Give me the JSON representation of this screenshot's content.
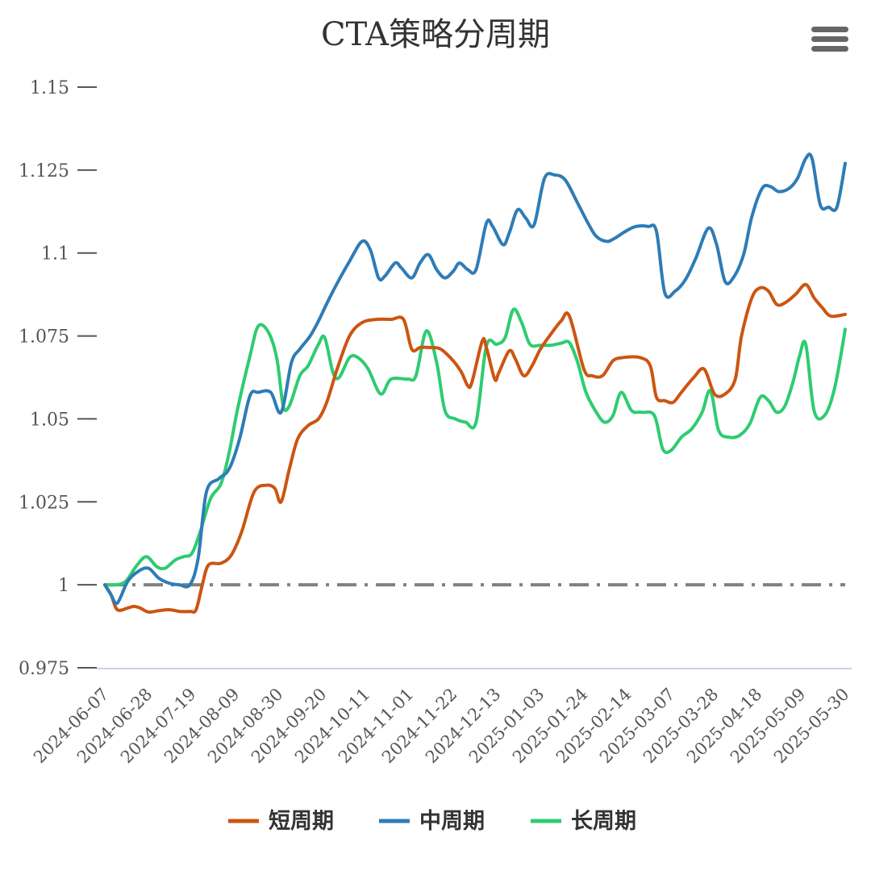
{
  "menu": {
    "icon": "hamburger-menu-icon"
  },
  "chart_data": {
    "type": "line",
    "title": "CTA策略分周期",
    "xlabel": "",
    "ylabel": "",
    "ylim": [
      0.975,
      1.15
    ],
    "yticks": [
      "1.15",
      "1.125",
      "1.1",
      "1.075",
      "1.05",
      "1.025",
      "1",
      "0.975"
    ],
    "ytick_values": [
      1.15,
      1.125,
      1.1,
      1.075,
      1.05,
      1.025,
      1.0,
      0.975
    ],
    "xticks": [
      "2024-06-07",
      "2024-06-28",
      "2024-07-19",
      "2024-08-09",
      "2024-08-30",
      "2024-09-20",
      "2024-10-11",
      "2024-11-01",
      "2024-11-22",
      "2024-12-13",
      "2025-01-03",
      "2025-01-24",
      "2025-02-14",
      "2025-03-07",
      "2025-03-28",
      "2025-04-18",
      "2025-05-09",
      "2025-05-30"
    ],
    "x_start": "2024-06-07",
    "x_end": "2025-05-30",
    "grid": false,
    "legend_position": "bottom",
    "reference_line": {
      "y": 1.0,
      "style": "dash-dot",
      "color": "#808080"
    },
    "series": [
      {
        "name": "短周期",
        "color": "#CC5511",
        "points": [
          [
            "2024-06-07",
            1.0
          ],
          [
            "2024-06-10",
            0.997
          ],
          [
            "2024-06-13",
            0.9925
          ],
          [
            "2024-06-18",
            0.993
          ],
          [
            "2024-06-21",
            0.9935
          ],
          [
            "2024-06-24",
            0.993
          ],
          [
            "2024-06-28",
            0.9918
          ],
          [
            "2024-07-03",
            0.9922
          ],
          [
            "2024-07-08",
            0.9925
          ],
          [
            "2024-07-13",
            0.992
          ],
          [
            "2024-07-18",
            0.992
          ],
          [
            "2024-07-21",
            0.9925
          ],
          [
            "2024-07-24",
            1.0
          ],
          [
            "2024-07-27",
            1.006
          ],
          [
            "2024-08-02",
            1.0065
          ],
          [
            "2024-08-07",
            1.009
          ],
          [
            "2024-08-12",
            1.016
          ],
          [
            "2024-08-18",
            1.028
          ],
          [
            "2024-08-24",
            1.03
          ],
          [
            "2024-08-28",
            1.029
          ],
          [
            "2024-08-31",
            1.025
          ],
          [
            "2024-09-04",
            1.035
          ],
          [
            "2024-09-08",
            1.044
          ],
          [
            "2024-09-13",
            1.048
          ],
          [
            "2024-09-18",
            1.05
          ],
          [
            "2024-09-22",
            1.055
          ],
          [
            "2024-09-27",
            1.065
          ],
          [
            "2024-10-03",
            1.075
          ],
          [
            "2024-10-09",
            1.079
          ],
          [
            "2024-10-16",
            1.08
          ],
          [
            "2024-10-23",
            1.08
          ],
          [
            "2024-10-29",
            1.08
          ],
          [
            "2024-11-02",
            1.071
          ],
          [
            "2024-11-06",
            1.0715
          ],
          [
            "2024-11-11",
            1.0715
          ],
          [
            "2024-11-16",
            1.071
          ],
          [
            "2024-11-22",
            1.0675
          ],
          [
            "2024-11-26",
            1.064
          ],
          [
            "2024-11-29",
            1.06
          ],
          [
            "2024-12-01",
            1.061
          ],
          [
            "2024-12-06",
            1.0735
          ],
          [
            "2024-12-08",
            1.0715
          ],
          [
            "2024-12-12",
            1.062
          ],
          [
            "2024-12-14",
            1.064
          ],
          [
            "2024-12-19",
            1.0705
          ],
          [
            "2024-12-22",
            1.068
          ],
          [
            "2024-12-26",
            1.063
          ],
          [
            "2024-12-30",
            1.066
          ],
          [
            "2025-01-03",
            1.071
          ],
          [
            "2025-01-08",
            1.0755
          ],
          [
            "2025-01-13",
            1.0795
          ],
          [
            "2025-01-17",
            1.081
          ],
          [
            "2025-01-24",
            1.065
          ],
          [
            "2025-01-28",
            1.063
          ],
          [
            "2025-02-02",
            1.063
          ],
          [
            "2025-02-07",
            1.0675
          ],
          [
            "2025-02-12",
            1.0685
          ],
          [
            "2025-02-20",
            1.0685
          ],
          [
            "2025-02-25",
            1.066
          ],
          [
            "2025-02-28",
            1.0565
          ],
          [
            "2025-03-04",
            1.0555
          ],
          [
            "2025-03-08",
            1.055
          ],
          [
            "2025-03-12",
            1.058
          ],
          [
            "2025-03-18",
            1.0625
          ],
          [
            "2025-03-23",
            1.065
          ],
          [
            "2025-03-28",
            1.0575
          ],
          [
            "2025-04-02",
            1.0575
          ],
          [
            "2025-04-07",
            1.062
          ],
          [
            "2025-04-10",
            1.075
          ],
          [
            "2025-04-15",
            1.0865
          ],
          [
            "2025-04-19",
            1.0895
          ],
          [
            "2025-04-23",
            1.0885
          ],
          [
            "2025-04-27",
            1.0845
          ],
          [
            "2025-05-01",
            1.085
          ],
          [
            "2025-05-06",
            1.0875
          ],
          [
            "2025-05-11",
            1.0905
          ],
          [
            "2025-05-15",
            1.0865
          ],
          [
            "2025-05-19",
            1.0835
          ],
          [
            "2025-05-23",
            1.081
          ],
          [
            "2025-05-30",
            1.0815
          ]
        ]
      },
      {
        "name": "中周期",
        "color": "#2E7CB6",
        "points": [
          [
            "2024-06-07",
            1.0
          ],
          [
            "2024-06-10",
            0.997
          ],
          [
            "2024-06-13",
            0.9945
          ],
          [
            "2024-06-18",
            1.001
          ],
          [
            "2024-06-23",
            1.004
          ],
          [
            "2024-06-28",
            1.005
          ],
          [
            "2024-07-03",
            1.002
          ],
          [
            "2024-07-08",
            1.0005
          ],
          [
            "2024-07-13",
            1.0
          ],
          [
            "2024-07-18",
            1.0
          ],
          [
            "2024-07-22",
            1.008
          ],
          [
            "2024-07-26",
            1.028
          ],
          [
            "2024-08-01",
            1.032
          ],
          [
            "2024-08-06",
            1.035
          ],
          [
            "2024-08-11",
            1.044
          ],
          [
            "2024-08-16",
            1.057
          ],
          [
            "2024-08-20",
            1.058
          ],
          [
            "2024-08-26",
            1.058
          ],
          [
            "2024-08-31",
            1.052
          ],
          [
            "2024-09-05",
            1.067
          ],
          [
            "2024-09-09",
            1.071
          ],
          [
            "2024-09-14",
            1.075
          ],
          [
            "2024-09-18",
            1.0795
          ],
          [
            "2024-09-23",
            1.086
          ],
          [
            "2024-09-28",
            1.092
          ],
          [
            "2024-10-03",
            1.0975
          ],
          [
            "2024-10-09",
            1.1035
          ],
          [
            "2024-10-13",
            1.101
          ],
          [
            "2024-10-17",
            1.0925
          ],
          [
            "2024-10-20",
            1.093
          ],
          [
            "2024-10-25",
            1.097
          ],
          [
            "2024-10-28",
            1.0955
          ],
          [
            "2024-11-02",
            1.0925
          ],
          [
            "2024-11-06",
            1.097
          ],
          [
            "2024-11-10",
            1.0995
          ],
          [
            "2024-11-14",
            1.095
          ],
          [
            "2024-11-18",
            1.0925
          ],
          [
            "2024-11-22",
            1.0945
          ],
          [
            "2024-11-25",
            1.097
          ],
          [
            "2024-11-29",
            1.095
          ],
          [
            "2024-12-03",
            1.095
          ],
          [
            "2024-12-08",
            1.109
          ],
          [
            "2024-12-11",
            1.108
          ],
          [
            "2024-12-16",
            1.1025
          ],
          [
            "2024-12-19",
            1.106
          ],
          [
            "2024-12-23",
            1.113
          ],
          [
            "2024-12-27",
            1.1105
          ],
          [
            "2024-12-31",
            1.1085
          ],
          [
            "2025-01-05",
            1.1225
          ],
          [
            "2025-01-10",
            1.1235
          ],
          [
            "2025-01-15",
            1.122
          ],
          [
            "2025-01-21",
            1.115
          ],
          [
            "2025-01-26",
            1.109
          ],
          [
            "2025-01-30",
            1.105
          ],
          [
            "2025-02-04",
            1.1035
          ],
          [
            "2025-02-08",
            1.1045
          ],
          [
            "2025-02-13",
            1.1065
          ],
          [
            "2025-02-18",
            1.108
          ],
          [
            "2025-02-24",
            1.108
          ],
          [
            "2025-02-28",
            1.1065
          ],
          [
            "2025-03-04",
            1.088
          ],
          [
            "2025-03-09",
            1.0885
          ],
          [
            "2025-03-14",
            1.092
          ],
          [
            "2025-03-19",
            1.0985
          ],
          [
            "2025-03-25",
            1.1075
          ],
          [
            "2025-03-29",
            1.1025
          ],
          [
            "2025-04-02",
            1.0915
          ],
          [
            "2025-04-06",
            1.0925
          ],
          [
            "2025-04-11",
            1.0995
          ],
          [
            "2025-04-15",
            1.111
          ],
          [
            "2025-04-20",
            1.1195
          ],
          [
            "2025-04-24",
            1.12
          ],
          [
            "2025-04-28",
            1.1185
          ],
          [
            "2025-05-03",
            1.1195
          ],
          [
            "2025-05-07",
            1.1225
          ],
          [
            "2025-05-11",
            1.1285
          ],
          [
            "2025-05-14",
            1.1285
          ],
          [
            "2025-05-18",
            1.1145
          ],
          [
            "2025-05-22",
            1.1138
          ],
          [
            "2025-05-26",
            1.1138
          ],
          [
            "2025-05-30",
            1.127
          ]
        ]
      },
      {
        "name": "长周期",
        "color": "#2ECC71",
        "points": [
          [
            "2024-06-07",
            1.0
          ],
          [
            "2024-06-12",
            1.0
          ],
          [
            "2024-06-17",
            1.001
          ],
          [
            "2024-06-22",
            1.0055
          ],
          [
            "2024-06-27",
            1.0085
          ],
          [
            "2024-07-02",
            1.0055
          ],
          [
            "2024-07-06",
            1.005
          ],
          [
            "2024-07-11",
            1.0075
          ],
          [
            "2024-07-15",
            1.0085
          ],
          [
            "2024-07-19",
            1.0095
          ],
          [
            "2024-07-23",
            1.016
          ],
          [
            "2024-07-28",
            1.026
          ],
          [
            "2024-08-02",
            1.0305
          ],
          [
            "2024-08-06",
            1.04
          ],
          [
            "2024-08-10",
            1.053
          ],
          [
            "2024-08-16",
            1.069
          ],
          [
            "2024-08-20",
            1.078
          ],
          [
            "2024-08-25",
            1.076
          ],
          [
            "2024-08-29",
            1.068
          ],
          [
            "2024-09-01",
            1.054
          ],
          [
            "2024-09-04",
            1.054
          ],
          [
            "2024-09-09",
            1.063
          ],
          [
            "2024-09-13",
            1.066
          ],
          [
            "2024-09-18",
            1.0725
          ],
          [
            "2024-09-21",
            1.0745
          ],
          [
            "2024-09-25",
            1.064
          ],
          [
            "2024-09-28",
            1.0625
          ],
          [
            "2024-10-03",
            1.0685
          ],
          [
            "2024-10-07",
            1.0685
          ],
          [
            "2024-10-12",
            1.065
          ],
          [
            "2024-10-18",
            1.0575
          ],
          [
            "2024-10-23",
            1.062
          ],
          [
            "2024-10-31",
            1.062
          ],
          [
            "2024-11-04",
            1.063
          ],
          [
            "2024-11-09",
            1.0765
          ],
          [
            "2024-11-14",
            1.067
          ],
          [
            "2024-11-18",
            1.0525
          ],
          [
            "2024-11-23",
            1.05
          ],
          [
            "2024-11-28",
            1.049
          ],
          [
            "2024-12-03",
            1.049
          ],
          [
            "2024-12-08",
            1.072
          ],
          [
            "2024-12-13",
            1.0725
          ],
          [
            "2024-12-17",
            1.0745
          ],
          [
            "2024-12-21",
            1.083
          ],
          [
            "2024-12-25",
            1.079
          ],
          [
            "2024-12-29",
            1.0725
          ],
          [
            "2025-01-03",
            1.0722
          ],
          [
            "2025-01-08",
            1.0722
          ],
          [
            "2025-01-13",
            1.0728
          ],
          [
            "2025-01-17",
            1.073
          ],
          [
            "2025-01-21",
            1.067
          ],
          [
            "2025-01-25",
            1.058
          ],
          [
            "2025-01-30",
            1.052
          ],
          [
            "2025-02-03",
            1.049
          ],
          [
            "2025-02-07",
            1.051
          ],
          [
            "2025-02-11",
            1.058
          ],
          [
            "2025-02-16",
            1.0525
          ],
          [
            "2025-02-21",
            1.052
          ],
          [
            "2025-02-27",
            1.051
          ],
          [
            "2025-03-03",
            1.041
          ],
          [
            "2025-03-07",
            1.0405
          ],
          [
            "2025-03-12",
            1.0445
          ],
          [
            "2025-03-17",
            1.047
          ],
          [
            "2025-03-22",
            1.052
          ],
          [
            "2025-03-26",
            1.0585
          ],
          [
            "2025-03-30",
            1.0465
          ],
          [
            "2025-04-04",
            1.0445
          ],
          [
            "2025-04-09",
            1.045
          ],
          [
            "2025-04-14",
            1.0485
          ],
          [
            "2025-04-19",
            1.0565
          ],
          [
            "2025-04-23",
            1.0555
          ],
          [
            "2025-04-27",
            1.052
          ],
          [
            "2025-05-01",
            1.054
          ],
          [
            "2025-05-05",
            1.0615
          ],
          [
            "2025-05-08",
            1.069
          ],
          [
            "2025-05-11",
            1.0725
          ],
          [
            "2025-05-15",
            1.0525
          ],
          [
            "2025-05-20",
            1.051
          ],
          [
            "2025-05-25",
            1.0595
          ],
          [
            "2025-05-30",
            1.077
          ]
        ]
      }
    ]
  }
}
